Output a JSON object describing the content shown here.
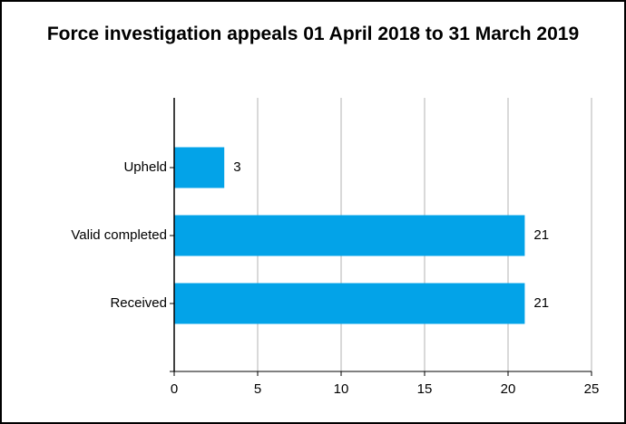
{
  "chart_data": {
    "type": "bar",
    "orientation": "horizontal",
    "title": "Force investigation appeals 01 April 2018 to 31 March 2019",
    "categories": [
      "Upheld",
      "Valid completed",
      "Received"
    ],
    "values": [
      3,
      21,
      21
    ],
    "color": "#03a3e8",
    "xlim": [
      0,
      25
    ],
    "xticks": [
      0,
      5,
      10,
      15,
      20,
      25
    ],
    "grid": true
  }
}
